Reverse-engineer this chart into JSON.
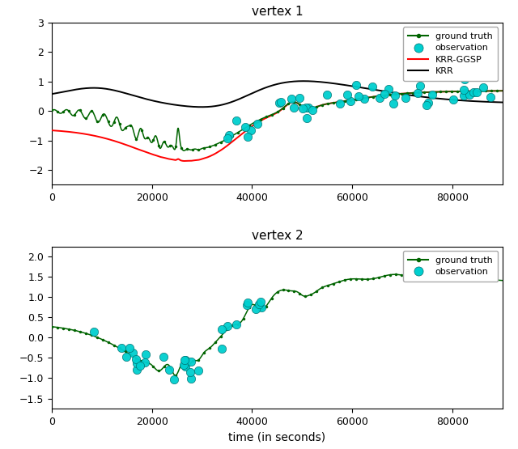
{
  "title1": "vertex 1",
  "title2": "vertex 2",
  "xlabel": "time (in seconds)",
  "xlim": [
    0,
    90000
  ],
  "ylim1": [
    -2.5,
    3.0
  ],
  "ylim2": [
    -1.75,
    2.25
  ],
  "yticks1": [
    -2,
    -1,
    0,
    1,
    2,
    3
  ],
  "yticks2": [
    -1.5,
    -1.0,
    -0.5,
    0.0,
    0.5,
    1.0,
    1.5,
    2.0
  ],
  "xticks": [
    0,
    20000,
    40000,
    60000,
    80000
  ],
  "gt_color": "#006400",
  "obs_color": "#00CFCF",
  "krr_ggsp_color": "#FF0000",
  "krr_color": "#000000",
  "n_points": 2000,
  "figsize": [
    6.4,
    5.55
  ],
  "dpi": 100
}
